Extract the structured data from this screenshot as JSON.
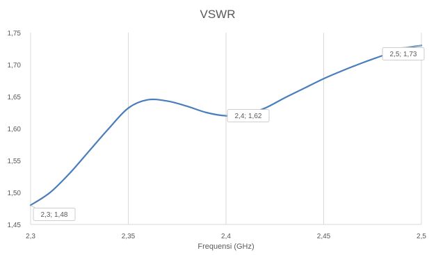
{
  "chart_data": {
    "type": "line",
    "title": "VSWR",
    "xlabel": "Frequensi (GHz)",
    "ylabel": "",
    "xlim": [
      2.3,
      2.5
    ],
    "ylim": [
      1.45,
      1.75
    ],
    "x_ticks": [
      2.3,
      2.35,
      2.4,
      2.45,
      2.5
    ],
    "x_tick_labels": [
      "2,3",
      "2,35",
      "2,4",
      "2,45",
      "2,5"
    ],
    "y_ticks": [
      1.45,
      1.5,
      1.55,
      1.6,
      1.65,
      1.7,
      1.75
    ],
    "y_tick_labels": [
      "1,45",
      "1,50",
      "1,55",
      "1,60",
      "1,65",
      "1,70",
      "1,75"
    ],
    "grid": "vertical",
    "legend": "none",
    "series_color": "#4a7ebb",
    "series": [
      {
        "x": [
          2.3,
          2.31,
          2.32,
          2.33,
          2.34,
          2.35,
          2.36,
          2.37,
          2.38,
          2.39,
          2.4,
          2.41,
          2.42,
          2.43,
          2.44,
          2.45,
          2.46,
          2.47,
          2.48,
          2.49,
          2.5
        ],
        "values": [
          1.48,
          1.5,
          1.53,
          1.565,
          1.6,
          1.632,
          1.645,
          1.643,
          1.635,
          1.625,
          1.62,
          1.622,
          1.632,
          1.648,
          1.663,
          1.678,
          1.691,
          1.703,
          1.714,
          1.725,
          1.73
        ]
      }
    ],
    "data_labels": [
      {
        "x": 2.3,
        "y": 1.48,
        "text": "2,3; 1,48"
      },
      {
        "x": 2.4,
        "y": 1.62,
        "text": "2,4; 1,62"
      },
      {
        "x": 2.5,
        "y": 1.73,
        "text": "2,5; 1,73"
      }
    ]
  }
}
